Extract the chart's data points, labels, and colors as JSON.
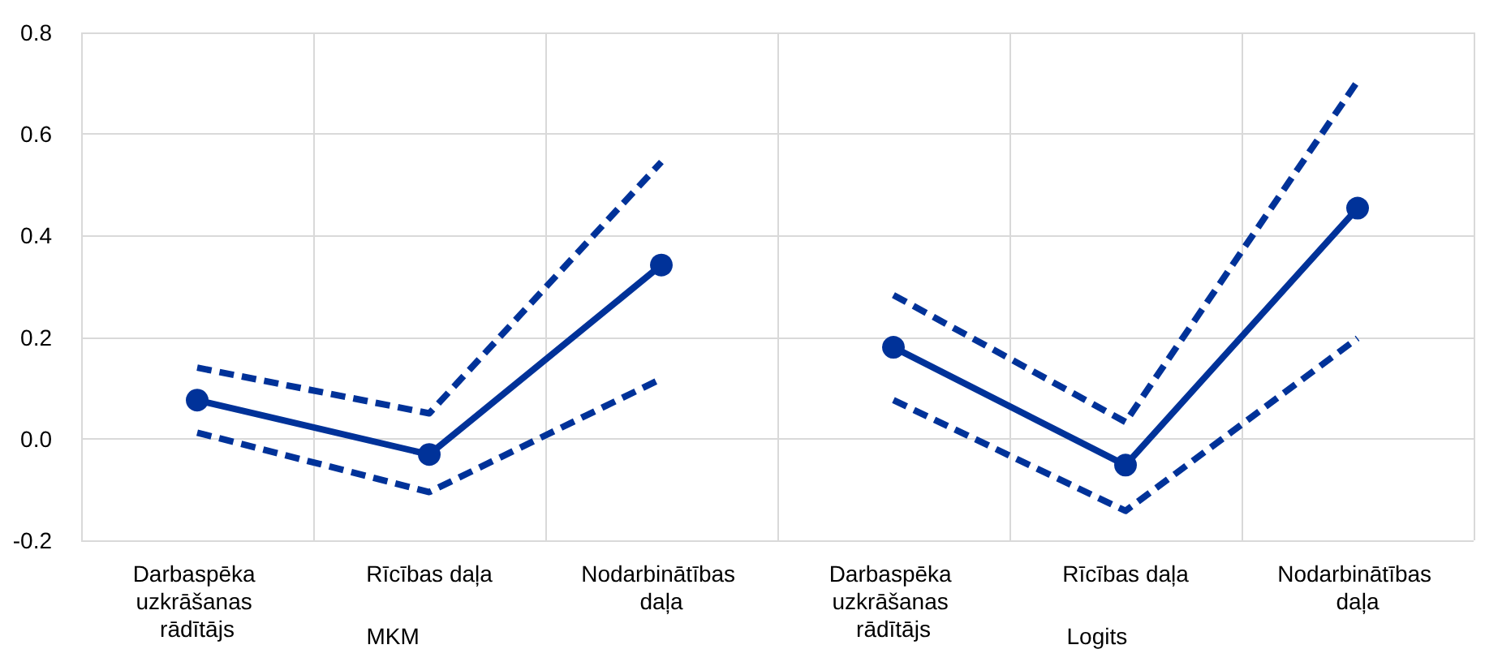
{
  "chart_data": {
    "type": "line",
    "categories": [
      "Darbaspēka uzkrāšanas rādītājs",
      "Rīcības daļa",
      "Nodarbinātības daļa",
      "Darbaspēka uzkrāšanas rādītājs",
      "Rīcības daļa",
      "Nodarbinātības daļa"
    ],
    "series": [
      {
        "color": "#003299",
        "line_style": "dashed",
        "marker": "none",
        "values": [
          0.14,
          0.05,
          0.545,
          null,
          null,
          null
        ]
      },
      {
        "color": "#003299",
        "line_style": "dashed",
        "marker": "none",
        "values": [
          0.012,
          -0.105,
          0.118,
          null,
          null,
          null
        ]
      },
      {
        "color": "#003299",
        "values": [
          0.076,
          -0.031,
          0.342,
          null,
          null,
          null
        ]
      },
      {
        "color": "#003299",
        "line_style": "dashed",
        "marker": "none",
        "values": [
          null,
          null,
          null,
          0.283,
          0.033,
          0.704
        ]
      },
      {
        "color": "#003299",
        "line_style": "dashed",
        "marker": "none",
        "values": [
          null,
          null,
          null,
          0.076,
          -0.142,
          0.198
        ]
      },
      {
        "color": "#003299",
        "values": [
          null,
          null,
          null,
          0.18,
          -0.052,
          0.454
        ]
      }
    ],
    "ylim": [
      -0.2,
      0.8
    ],
    "yticks": [
      -0.2,
      {
        "value": 0,
        "label": "0.0"
      },
      0.2,
      0.4,
      0.6,
      0.8
    ],
    "annotations": [
      "MKM",
      "Logits"
    ],
    "grid": true,
    "marker": "circle",
    "line_style": "solid"
  }
}
